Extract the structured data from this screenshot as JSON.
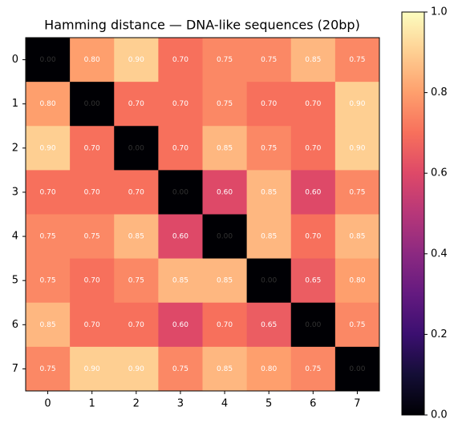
{
  "chart_data": {
    "type": "heatmap",
    "title": "Hamming distance — DNA-like sequences (20bp)",
    "colormap": "magma",
    "x_categories": [
      "0",
      "1",
      "2",
      "3",
      "4",
      "5",
      "6",
      "7"
    ],
    "y_categories": [
      "0",
      "1",
      "2",
      "3",
      "4",
      "5",
      "6",
      "7"
    ],
    "values": [
      [
        0.0,
        0.8,
        0.9,
        0.7,
        0.75,
        0.75,
        0.85,
        0.75
      ],
      [
        0.8,
        0.0,
        0.7,
        0.7,
        0.75,
        0.7,
        0.7,
        0.9
      ],
      [
        0.9,
        0.7,
        0.0,
        0.7,
        0.85,
        0.75,
        0.7,
        0.9
      ],
      [
        0.7,
        0.7,
        0.7,
        0.0,
        0.6,
        0.85,
        0.6,
        0.75
      ],
      [
        0.75,
        0.75,
        0.85,
        0.6,
        0.0,
        0.85,
        0.7,
        0.85
      ],
      [
        0.75,
        0.7,
        0.75,
        0.85,
        0.85,
        0.0,
        0.65,
        0.8
      ],
      [
        0.85,
        0.7,
        0.7,
        0.6,
        0.7,
        0.65,
        0.0,
        0.75
      ],
      [
        0.75,
        0.9,
        0.9,
        0.75,
        0.85,
        0.8,
        0.75,
        0.0
      ]
    ],
    "value_labels": [
      [
        "0.00",
        "0.80",
        "0.90",
        "0.70",
        "0.75",
        "0.75",
        "0.85",
        "0.75"
      ],
      [
        "0.80",
        "0.00",
        "0.70",
        "0.70",
        "0.75",
        "0.70",
        "0.70",
        "0.90"
      ],
      [
        "0.90",
        "0.70",
        "0.00",
        "0.70",
        "0.85",
        "0.75",
        "0.70",
        "0.90"
      ],
      [
        "0.70",
        "0.70",
        "0.70",
        "0.00",
        "0.60",
        "0.85",
        "0.60",
        "0.75"
      ],
      [
        "0.75",
        "0.75",
        "0.85",
        "0.60",
        "0.00",
        "0.85",
        "0.70",
        "0.85"
      ],
      [
        "0.75",
        "0.70",
        "0.75",
        "0.85",
        "0.85",
        "0.00",
        "0.65",
        "0.80"
      ],
      [
        "0.85",
        "0.70",
        "0.70",
        "0.60",
        "0.70",
        "0.65",
        "0.00",
        "0.75"
      ],
      [
        "0.75",
        "0.90",
        "0.90",
        "0.75",
        "0.85",
        "0.80",
        "0.75",
        "0.00"
      ]
    ],
    "clim": [
      0,
      1
    ],
    "cticks": [
      {
        "value": 0,
        "label": "0.0"
      },
      0.2,
      0.4,
      0.6,
      0.8,
      {
        "value": 1,
        "label": "1.0"
      }
    ]
  }
}
